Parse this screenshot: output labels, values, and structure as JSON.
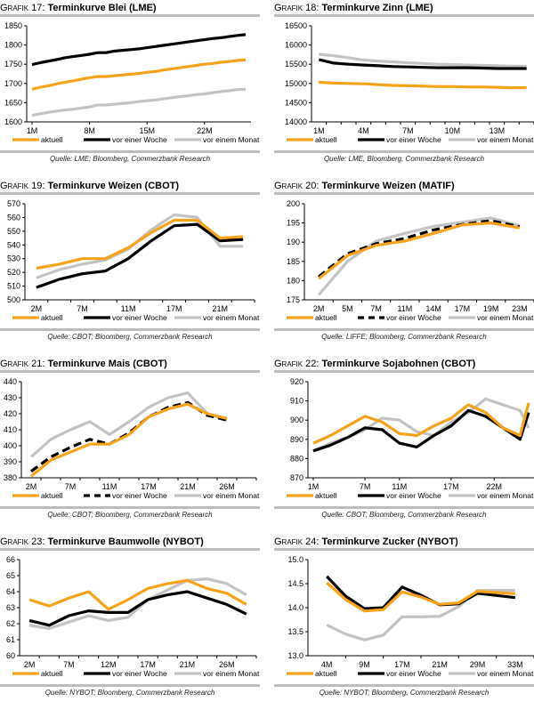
{
  "colors": {
    "aktuell": "#f7a21b",
    "woche": "#000000",
    "monat": "#c3c3c3",
    "rule": "#bdbdbd"
  },
  "chart_data": [
    {
      "id": "g17",
      "prefix": "Grafik 17:",
      "title": "Terminkurve Blei (LME)",
      "type": "line",
      "source": "Quelle: LME; Bloomberg, Commerzbank Research",
      "ylim": [
        1600,
        1850
      ],
      "yticks": [
        1600,
        1650,
        1700,
        1750,
        1800,
        1850
      ],
      "n": 27,
      "xtick_labels": [
        {
          "i": 0,
          "label": "1M"
        },
        {
          "i": 7,
          "label": "8M"
        },
        {
          "i": 14,
          "label": "15M"
        },
        {
          "i": 21,
          "label": "22M"
        }
      ],
      "legend": [
        "aktuell",
        "vor einer Woche",
        "vor einem Monat"
      ],
      "series": [
        {
          "name": "aktuell",
          "style": "aktuell",
          "dashed": false,
          "values": [
            1685,
            1690,
            1694,
            1699,
            1703,
            1707,
            1711,
            1715,
            1718,
            1718,
            1720,
            1722,
            1724,
            1726,
            1729,
            1731,
            1735,
            1738,
            1741,
            1744,
            1747,
            1750,
            1752,
            1755,
            1757,
            1760,
            1761
          ]
        },
        {
          "name": "vor einer Woche",
          "style": "woche",
          "dashed": false,
          "values": [
            1749,
            1754,
            1758,
            1762,
            1767,
            1770,
            1773,
            1776,
            1780,
            1780,
            1784,
            1786,
            1788,
            1790,
            1793,
            1796,
            1799,
            1802,
            1805,
            1808,
            1811,
            1814,
            1817,
            1819,
            1822,
            1825,
            1827
          ]
        },
        {
          "name": "vor einem Monat",
          "style": "monat",
          "dashed": false,
          "values": [
            1617,
            1621,
            1625,
            1628,
            1631,
            1633,
            1636,
            1639,
            1644,
            1644,
            1646,
            1648,
            1650,
            1653,
            1655,
            1657,
            1660,
            1663,
            1666,
            1668,
            1671,
            1673,
            1676,
            1679,
            1681,
            1684,
            1685
          ]
        }
      ]
    },
    {
      "id": "g18",
      "prefix": "Grafik 18:",
      "title": "Terminkurve Zinn (LME)",
      "type": "line",
      "source": "Quelle: LME, Bloomberg, Commerzbank Research",
      "ylim": [
        14000,
        16500
      ],
      "yticks": [
        14000,
        14500,
        15000,
        15500,
        16000,
        16500
      ],
      "n": 15,
      "xtick_labels": [
        {
          "i": 0,
          "label": "1M"
        },
        {
          "i": 3,
          "label": "4M"
        },
        {
          "i": 6,
          "label": "7M"
        },
        {
          "i": 9,
          "label": "10M"
        },
        {
          "i": 12,
          "label": "13M"
        }
      ],
      "legend": [
        "aktuell",
        "vor einer Woche",
        "vor einem Monat"
      ],
      "series": [
        {
          "name": "aktuell",
          "style": "aktuell",
          "dashed": false,
          "values": [
            15030,
            15010,
            15000,
            14990,
            14970,
            14950,
            14940,
            14930,
            14920,
            14920,
            14910,
            14910,
            14900,
            14890,
            14890
          ]
        },
        {
          "name": "vor einer Woche",
          "style": "woche",
          "dashed": false,
          "values": [
            15620,
            15530,
            15500,
            15480,
            15460,
            15440,
            15430,
            15420,
            15410,
            15410,
            15410,
            15400,
            15390,
            15390,
            15390
          ]
        },
        {
          "name": "vor einem Monat",
          "style": "monat",
          "dashed": false,
          "values": [
            15760,
            15720,
            15670,
            15610,
            15580,
            15560,
            15540,
            15520,
            15500,
            15490,
            15480,
            15470,
            15460,
            15450,
            15450
          ]
        }
      ]
    },
    {
      "id": "g19",
      "prefix": "Grafik 19:",
      "title": "Terminkurve Weizen (CBOT)",
      "type": "line",
      "source": "Quelle: CBOT; Bloomberg, Commerzbank Research",
      "ylim": [
        500,
        570
      ],
      "yticks": [
        500,
        510,
        520,
        530,
        540,
        550,
        560,
        570
      ],
      "n": 10,
      "xtick_labels": [
        {
          "i": 0,
          "label": "2M"
        },
        {
          "i": 2,
          "label": "7M"
        },
        {
          "i": 4,
          "label": "11M"
        },
        {
          "i": 6,
          "label": "17M"
        },
        {
          "i": 8,
          "label": "21M"
        }
      ],
      "legend": [
        "aktuell",
        "vor einer Woche",
        "vor einem Monat"
      ],
      "series": [
        {
          "name": "aktuell",
          "style": "aktuell",
          "dashed": false,
          "values": [
            523,
            526,
            530,
            530,
            538,
            549,
            558,
            558,
            545,
            546
          ]
        },
        {
          "name": "vor einer Woche",
          "style": "woche",
          "dashed": false,
          "values": [
            509,
            515,
            519,
            521,
            530,
            543,
            554,
            555,
            543,
            544
          ]
        },
        {
          "name": "vor einem Monat",
          "style": "monat",
          "dashed": false,
          "values": [
            516,
            522,
            526,
            529,
            537,
            551,
            562,
            560,
            539,
            539
          ]
        }
      ]
    },
    {
      "id": "g20",
      "prefix": "Grafik 20:",
      "title": "Terminkurve Weizen (MATIF)",
      "type": "line",
      "source": "Quelle: LIFFE; Bloomberg, Commerzbank Research",
      "ylim": [
        175,
        200
      ],
      "yticks": [
        175,
        180,
        185,
        190,
        195,
        200
      ],
      "n": 8,
      "xtick_labels": [
        {
          "i": 0,
          "label": "2M"
        },
        {
          "i": 1,
          "label": "5M"
        },
        {
          "i": 2,
          "label": "7M"
        },
        {
          "i": 3,
          "label": "11M"
        },
        {
          "i": 4,
          "label": "14M"
        },
        {
          "i": 5,
          "label": "17M"
        },
        {
          "i": 6,
          "label": "19M"
        },
        {
          "i": 7,
          "label": "23M"
        }
      ],
      "legend": [
        "aktuell",
        "vor einer Woche",
        "vor einem Monat"
      ],
      "series": [
        {
          "name": "aktuell",
          "style": "aktuell",
          "dashed": false,
          "values": [
            180.5,
            186.5,
            189.2,
            190.3,
            192.3,
            194.5,
            195.0,
            193.7
          ]
        },
        {
          "name": "vor einer Woche",
          "style": "woche",
          "dashed": true,
          "values": [
            181.0,
            187.0,
            189.6,
            191.0,
            193.2,
            194.6,
            195.6,
            194.0
          ]
        },
        {
          "name": "vor einem Monat",
          "style": "monat",
          "dashed": false,
          "values": [
            176.3,
            185.0,
            190.3,
            192.3,
            194.1,
            195.2,
            196.3,
            194.3
          ]
        }
      ]
    },
    {
      "id": "g21",
      "prefix": "Grafik 21:",
      "title": "Terminkurve Mais (CBOT)",
      "type": "line",
      "source": "Quelle: CBOT; Bloomberg, Commerzbank Research",
      "ylim": [
        380,
        440
      ],
      "yticks": [
        380,
        390,
        400,
        410,
        420,
        430,
        440
      ],
      "n": 12,
      "xtick_labels": [
        {
          "i": 0,
          "label": "2M"
        },
        {
          "i": 2,
          "label": "7M"
        },
        {
          "i": 4,
          "label": "11M"
        },
        {
          "i": 6,
          "label": "17M"
        },
        {
          "i": 8,
          "label": "21M"
        },
        {
          "i": 10,
          "label": "26M"
        }
      ],
      "legend": [
        "aktuell",
        "vor einer Woche",
        "vor einem Monat"
      ],
      "series": [
        {
          "name": "aktuell",
          "style": "aktuell",
          "dashed": false,
          "values": [
            381,
            391,
            396,
            401,
            401,
            407,
            418,
            423,
            426,
            420,
            417
          ]
        },
        {
          "name": "vor einer Woche",
          "style": "woche",
          "dashed": true,
          "values": [
            384,
            393,
            399,
            404,
            401,
            408,
            418,
            424,
            427,
            419,
            416
          ]
        },
        {
          "name": "vor einem Monat",
          "style": "monat",
          "dashed": false,
          "values": [
            393,
            404,
            410,
            415,
            407,
            415,
            424,
            430,
            433,
            420,
            416
          ]
        }
      ]
    },
    {
      "id": "g22",
      "prefix": "Grafik 22:",
      "title": "Terminkurve Sojabohnen (CBOT)",
      "type": "line",
      "source": "Quelle: CBOT; Bloomberg, Commerzbank Research",
      "ylim": [
        870,
        920
      ],
      "yticks": [
        870,
        880,
        890,
        900,
        910,
        920
      ],
      "n": 26,
      "xtick_labels": [
        {
          "i": 0,
          "label": "1M"
        },
        {
          "i": 6,
          "label": "7M"
        },
        {
          "i": 10,
          "label": "11M"
        },
        {
          "i": 16,
          "label": "17M"
        },
        {
          "i": 21,
          "label": "22M"
        }
      ],
      "legend": [
        "aktuell",
        "vor einer Woche",
        "vor einem Monat"
      ],
      "series": [
        {
          "name": "aktuell",
          "style": "aktuell",
          "dashed": false,
          "x": [
            0,
            2,
            4,
            6,
            8,
            10,
            12,
            14,
            16,
            18,
            20,
            22,
            24,
            25
          ],
          "values": [
            888,
            892,
            897,
            902,
            899,
            893,
            892,
            897,
            901,
            908,
            904,
            896,
            892,
            909
          ]
        },
        {
          "name": "vor einer Woche",
          "style": "woche",
          "dashed": false,
          "x": [
            0,
            2,
            4,
            6,
            8,
            10,
            12,
            14,
            16,
            18,
            20,
            22,
            24,
            25
          ],
          "values": [
            884,
            887,
            891,
            896,
            895,
            888,
            886,
            892,
            897,
            905,
            902,
            896,
            890,
            904
          ]
        },
        {
          "name": "vor einem Monat",
          "style": "monat",
          "dashed": false,
          "x": [
            0,
            2,
            4,
            6,
            8,
            10,
            12,
            14,
            16,
            18,
            20,
            22,
            24,
            25
          ],
          "values": [
            884,
            888,
            891,
            895,
            901,
            900,
            894,
            892,
            899,
            904,
            911,
            908,
            905,
            896
          ]
        }
      ]
    },
    {
      "id": "g23",
      "prefix": "Grafik 23:",
      "title": "Terminkurve Baumwolle (NYBOT)",
      "type": "line",
      "source": "Quelle: NYBOT; Bloomberg, Commerzbank Research",
      "ylim": [
        60,
        66
      ],
      "yticks": [
        60,
        61,
        62,
        63,
        64,
        65,
        66
      ],
      "n": 12,
      "xtick_labels": [
        {
          "i": 0,
          "label": "2M"
        },
        {
          "i": 2,
          "label": "7M"
        },
        {
          "i": 4,
          "label": "12M"
        },
        {
          "i": 6,
          "label": "17M"
        },
        {
          "i": 8,
          "label": "21M"
        },
        {
          "i": 10,
          "label": "26M"
        }
      ],
      "legend": [
        "aktuell",
        "vor einer Woche",
        "vor einem Monat"
      ],
      "series": [
        {
          "name": "aktuell",
          "style": "aktuell",
          "dashed": false,
          "values": [
            63.5,
            63.1,
            63.6,
            64.0,
            62.9,
            63.5,
            64.2,
            64.5,
            64.7,
            64.2,
            63.9,
            63.2
          ]
        },
        {
          "name": "vor einer Woche",
          "style": "woche",
          "dashed": false,
          "values": [
            62.2,
            61.9,
            62.5,
            62.8,
            62.7,
            62.7,
            63.5,
            63.8,
            64.0,
            63.6,
            63.2,
            62.6
          ]
        },
        {
          "name": "vor einem Monat",
          "style": "monat",
          "dashed": false,
          "values": [
            61.9,
            61.7,
            62.1,
            62.5,
            62.2,
            62.4,
            63.5,
            64.1,
            64.7,
            64.8,
            64.5,
            63.8
          ]
        }
      ]
    },
    {
      "id": "g24",
      "prefix": "Grafik 24:",
      "title": "Terminkurve Zucker (NYBOT)",
      "type": "line",
      "source": "Quelle: NYBOT; Bloomberg, Commerzbank Research",
      "ylim": [
        13.0,
        15.0
      ],
      "yticks": [
        "13.0",
        "13.5",
        "14.0",
        "14.5",
        "15.0"
      ],
      "n": 8,
      "xtick_labels": [
        {
          "i": 0,
          "label": "4M"
        },
        {
          "i": 1,
          "label": "9M"
        },
        {
          "i": 2,
          "label": "17M"
        },
        {
          "i": 3,
          "label": "21M"
        },
        {
          "i": 4,
          "label": "29M"
        },
        {
          "i": 5,
          "label": "33M"
        }
      ],
      "legend": [
        "aktuell",
        "vor einer Woche",
        "vor einem Monat"
      ],
      "series": [
        {
          "name": "aktuell",
          "style": "aktuell",
          "dashed": false,
          "x": [
            0,
            0.5,
            1,
            1.5,
            2,
            2.5,
            3,
            3.5,
            4,
            5
          ],
          "values": [
            14.52,
            14.17,
            13.93,
            13.96,
            14.33,
            14.22,
            14.07,
            14.1,
            14.34,
            14.29
          ]
        },
        {
          "name": "vor einer Woche",
          "style": "woche",
          "dashed": false,
          "x": [
            0,
            0.5,
            1,
            1.5,
            2,
            2.5,
            3,
            3.5,
            4,
            5
          ],
          "values": [
            14.65,
            14.24,
            13.98,
            14.0,
            14.43,
            14.26,
            14.06,
            14.08,
            14.3,
            14.21
          ]
        },
        {
          "name": "vor einem Monat",
          "style": "monat",
          "dashed": false,
          "x": [
            0,
            0.5,
            1,
            1.5,
            2,
            2.5,
            3,
            3.5,
            4,
            5
          ],
          "values": [
            13.64,
            13.45,
            13.33,
            13.43,
            13.81,
            13.81,
            13.82,
            14.02,
            14.36,
            14.36
          ]
        }
      ]
    }
  ]
}
